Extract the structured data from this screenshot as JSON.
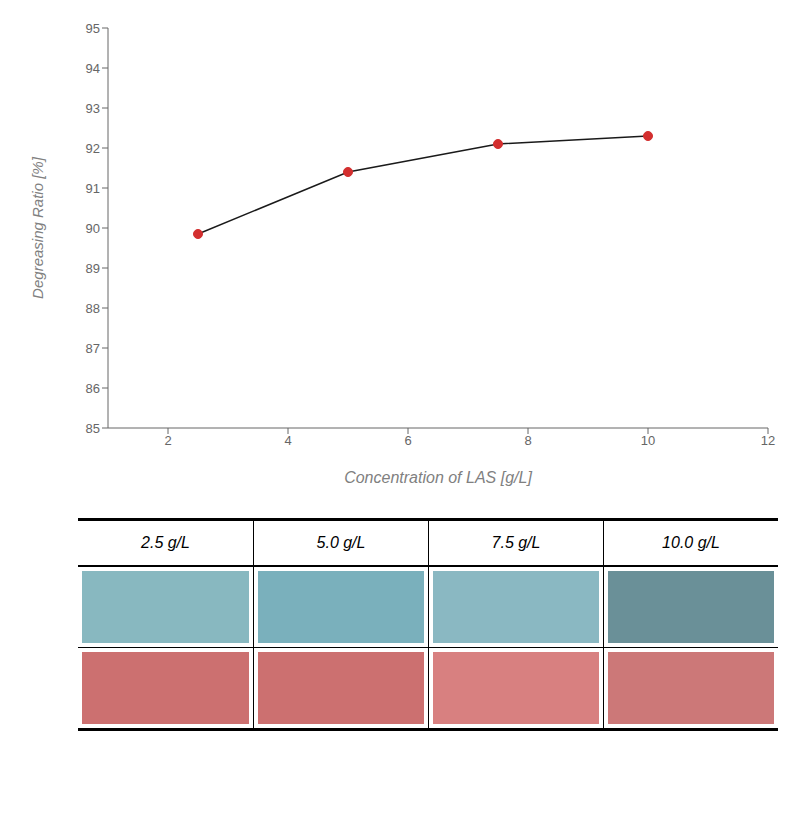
{
  "chart_data": [
    {
      "type": "line",
      "x": [
        2.5,
        5.0,
        7.5,
        10.0
      ],
      "series": [
        {
          "type": "line",
          "color": "#1a1a1a",
          "values": [
            89.85,
            91.4,
            92.1,
            92.3
          ]
        },
        {
          "type": "scatter",
          "color": "#d32f2f",
          "marker": "circle",
          "values": [
            89.85,
            91.4,
            92.1,
            92.3
          ]
        }
      ],
      "xlim": [
        1,
        12
      ],
      "ylim": [
        85,
        95
      ],
      "xticks": [
        2,
        4,
        6,
        8,
        10,
        12
      ],
      "yticks": [
        85,
        86,
        87,
        88,
        89,
        90,
        91,
        92,
        93,
        94,
        95
      ],
      "x_label": "Concentration of LAS [g/L]",
      "y_label": "Degreasing Ratio [%]",
      "grid": false
    },
    {
      "type": "image_table",
      "categories": [
        "2.5 g/L",
        "5.0 g/L",
        "7.5 g/L",
        "10.0 g/L"
      ],
      "series": [
        {
          "colors": [
            "#88b8c0",
            "#7ab0bc",
            "#8ab8c2",
            "#6a9098"
          ]
        },
        {
          "colors": [
            "#cc7070",
            "#cc7070",
            "#d88080",
            "#cc7878"
          ]
        }
      ]
    }
  ]
}
